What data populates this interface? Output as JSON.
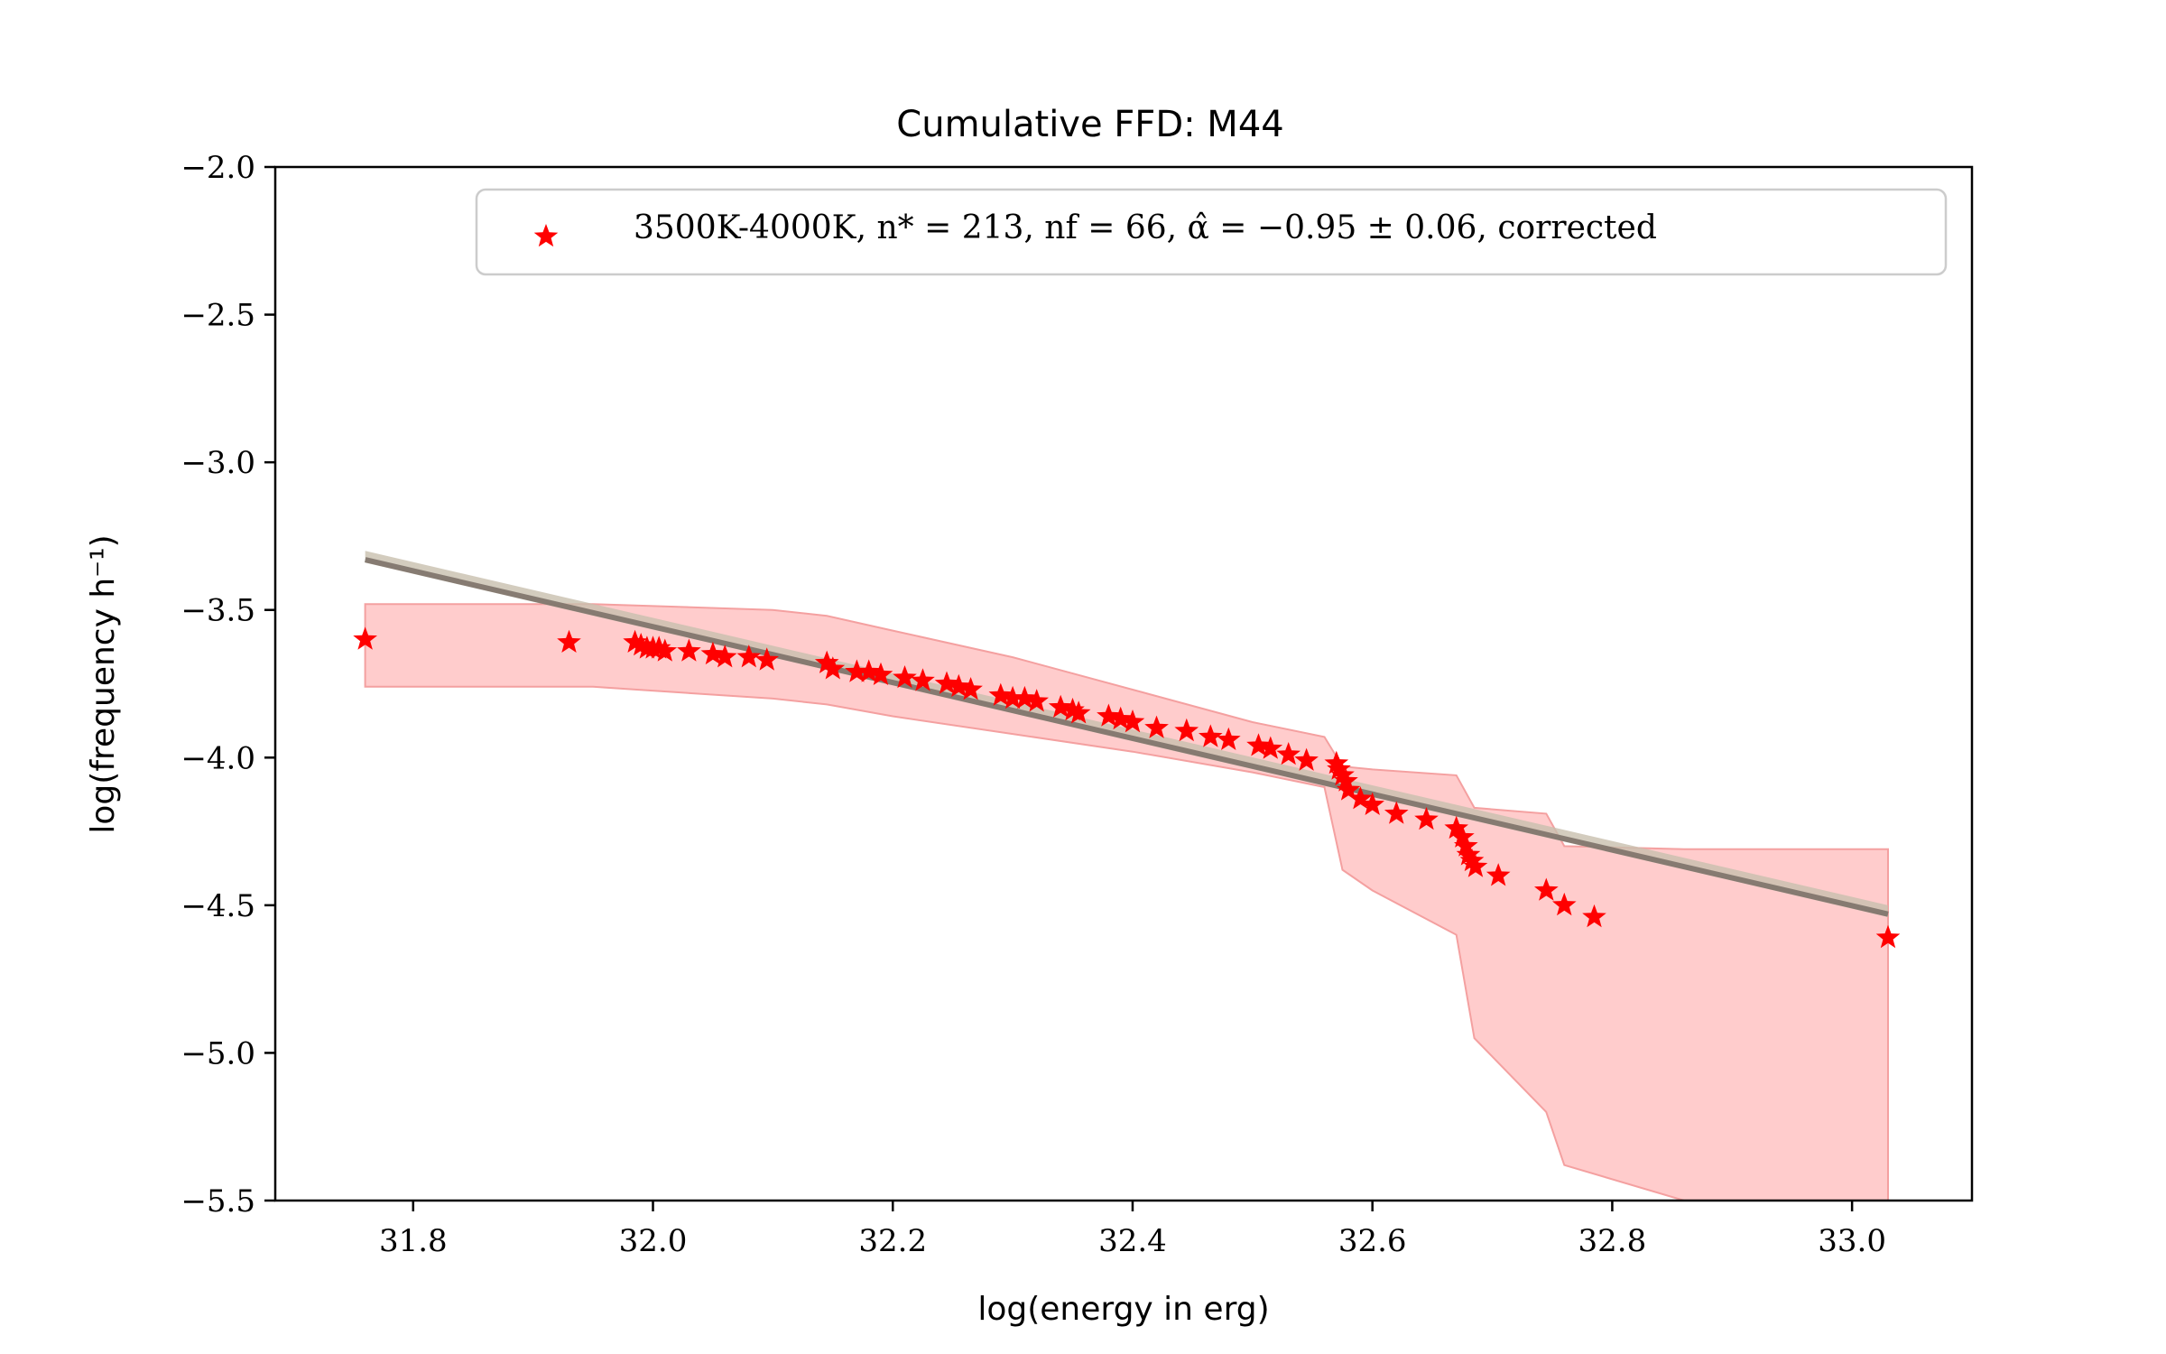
{
  "chart_data": {
    "type": "scatter",
    "title": "Cumulative FFD: M44",
    "xlabel": "log(energy in erg)",
    "ylabel": "log(frequency h⁻¹)",
    "xlim": [
      31.685,
      33.1
    ],
    "ylim": [
      -5.5,
      -2.0
    ],
    "x_ticks": [
      31.8,
      32.0,
      32.2,
      32.4,
      32.6,
      32.8,
      33.0
    ],
    "x_tick_labels": [
      "31.8",
      "32.0",
      "32.2",
      "32.4",
      "32.6",
      "32.8",
      "33.0"
    ],
    "y_ticks": [
      -2.0,
      -2.5,
      -3.0,
      -3.5,
      -4.0,
      -4.5,
      -5.0,
      -5.5
    ],
    "y_tick_labels": [
      "−2.0",
      "−2.5",
      "−3.0",
      "−3.5",
      "−4.0",
      "−4.5",
      "−5.0",
      "−5.5"
    ],
    "grid": false,
    "legend_position": "top-right",
    "colors": {
      "points": "#ff0000",
      "band_fill": "#ffcccc",
      "band_edge": "#f4a0a0",
      "fit_line": "#7d7269",
      "fit_band": "#c8bfae"
    },
    "series": [
      {
        "name": "3500K-4000K, n* = 213, nf = 66, α̂ = −0.95 ± 0.06, corrected",
        "marker": "star",
        "x": [
          31.76,
          31.93,
          31.985,
          31.99,
          31.995,
          32.0,
          32.005,
          32.01,
          32.03,
          32.05,
          32.06,
          32.08,
          32.095,
          32.145,
          32.15,
          32.17,
          32.18,
          32.19,
          32.21,
          32.225,
          32.245,
          32.255,
          32.265,
          32.29,
          32.3,
          32.31,
          32.32,
          32.34,
          32.35,
          32.355,
          32.38,
          32.39,
          32.4,
          32.42,
          32.445,
          32.465,
          32.48,
          32.505,
          32.515,
          32.53,
          32.545,
          32.57,
          32.572,
          32.575,
          32.578,
          32.58,
          32.59,
          32.6,
          32.62,
          32.645,
          32.67,
          32.675,
          32.678,
          32.68,
          32.683,
          32.686,
          32.705,
          32.745,
          32.76,
          32.785,
          33.03
        ],
        "y": [
          -3.6,
          -3.61,
          -3.61,
          -3.62,
          -3.63,
          -3.63,
          -3.63,
          -3.64,
          -3.64,
          -3.65,
          -3.66,
          -3.66,
          -3.67,
          -3.68,
          -3.7,
          -3.71,
          -3.71,
          -3.72,
          -3.73,
          -3.74,
          -3.75,
          -3.76,
          -3.77,
          -3.79,
          -3.8,
          -3.8,
          -3.81,
          -3.83,
          -3.84,
          -3.85,
          -3.86,
          -3.87,
          -3.88,
          -3.9,
          -3.91,
          -3.93,
          -3.94,
          -3.96,
          -3.97,
          -3.99,
          -4.01,
          -4.02,
          -4.04,
          -4.06,
          -4.08,
          -4.11,
          -4.14,
          -4.16,
          -4.19,
          -4.21,
          -4.24,
          -4.27,
          -4.3,
          -4.33,
          -4.35,
          -4.37,
          -4.4,
          -4.45,
          -4.5,
          -4.54,
          -4.61
        ]
      }
    ],
    "fit_line": {
      "x": [
        31.76,
        33.03
      ],
      "y": [
        -3.33,
        -4.53
      ]
    },
    "fit_band": {
      "x": [
        31.76,
        33.03
      ],
      "lower": [
        -3.34,
        -4.54
      ],
      "upper": [
        -3.3,
        -4.5
      ]
    },
    "confidence_band": {
      "x": [
        31.76,
        31.95,
        32.1,
        32.145,
        32.2,
        32.3,
        32.4,
        32.5,
        32.56,
        32.575,
        32.6,
        32.67,
        32.685,
        32.745,
        32.76,
        32.86,
        33.03
      ],
      "upper": [
        -3.48,
        -3.48,
        -3.5,
        -3.52,
        -3.57,
        -3.66,
        -3.77,
        -3.88,
        -3.93,
        -4.03,
        -4.04,
        -4.06,
        -4.17,
        -4.19,
        -4.3,
        -4.31,
        -4.31
      ],
      "lower": [
        -3.76,
        -3.76,
        -3.8,
        -3.82,
        -3.86,
        -3.92,
        -3.98,
        -4.05,
        -4.1,
        -4.38,
        -4.45,
        -4.6,
        -4.95,
        -5.2,
        -5.38,
        -5.5,
        -5.5
      ]
    }
  }
}
